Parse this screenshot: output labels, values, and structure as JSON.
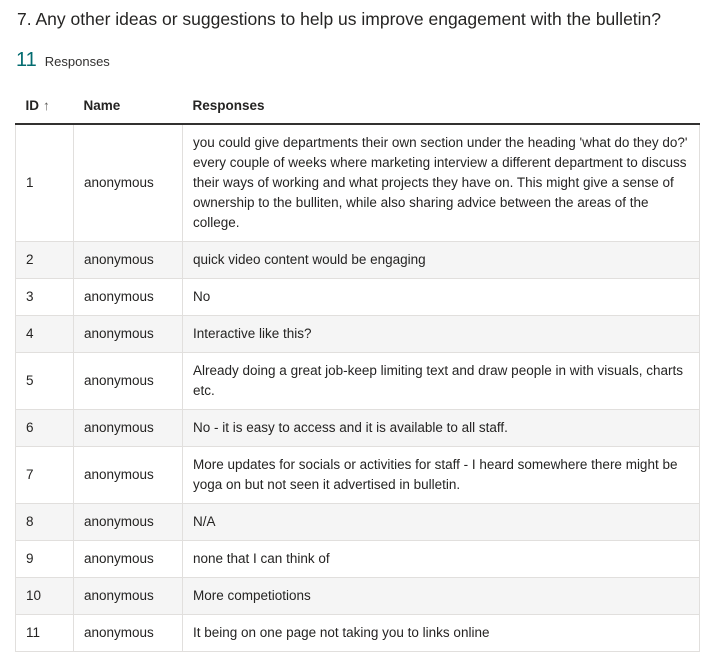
{
  "question": {
    "title": "7.  Any other ideas or suggestions to help us improve engagement with the bulletin?",
    "count": "11",
    "count_label": "Responses"
  },
  "table": {
    "headers": {
      "id": "ID",
      "id_sort_icon": "↑",
      "name": "Name",
      "responses": "Responses"
    },
    "rows": [
      {
        "id": "1",
        "name": "anonymous",
        "response": "you could give departments their own section under the heading 'what do they do?' every couple of weeks where marketing interview a different department to discuss their ways of working and what projects they have on. This might give a sense of ownership to the bulliten, while also sharing advice between the areas of the college."
      },
      {
        "id": "2",
        "name": "anonymous",
        "response": "quick video content would be engaging"
      },
      {
        "id": "3",
        "name": "anonymous",
        "response": "No"
      },
      {
        "id": "4",
        "name": "anonymous",
        "response": "Interactive like this?"
      },
      {
        "id": "5",
        "name": "anonymous",
        "response": "Already doing a great job-keep limiting text and draw people in with visuals, charts etc."
      },
      {
        "id": "6",
        "name": "anonymous",
        "response": "No - it is easy to access and it is available to all staff."
      },
      {
        "id": "7",
        "name": "anonymous",
        "response": "More updates for socials or activities for staff - I heard somewhere there might be yoga on but not seen it advertised in bulletin."
      },
      {
        "id": "8",
        "name": "anonymous",
        "response": "N/A"
      },
      {
        "id": "9",
        "name": "anonymous",
        "response": "none that I can think of"
      },
      {
        "id": "10",
        "name": "anonymous",
        "response": "More competiotions"
      },
      {
        "id": "11",
        "name": "anonymous",
        "response": "It being on one page not taking you to links online"
      }
    ]
  }
}
